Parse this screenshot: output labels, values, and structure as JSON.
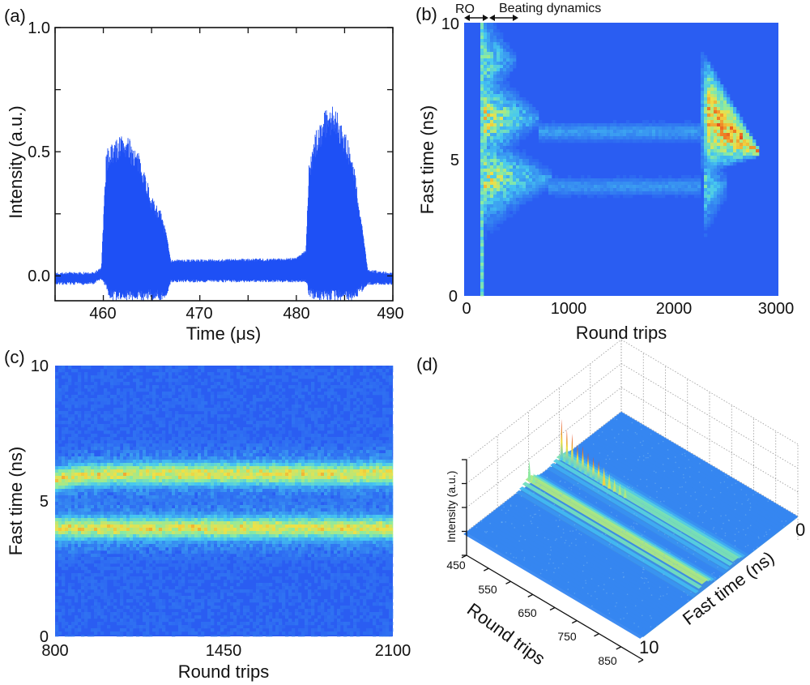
{
  "panels": {
    "a": "(a)",
    "b": "(b)",
    "c": "(c)",
    "d": "(d)"
  },
  "annotations": {
    "ro": "RO",
    "beating": "Beating dynamics"
  },
  "colors": {
    "trace": "#1e50f5",
    "heat_low": "#2a5df2",
    "heat_mid": "#46c8f0",
    "heat_yellow": "#f0e146",
    "heat_high": "#e12814"
  },
  "chart_data": [
    {
      "panel": "a",
      "type": "line",
      "xlabel": "Time (μs)",
      "ylabel": "Intensity (a.u.)",
      "xlim": [
        455,
        490
      ],
      "ylim": [
        -0.1,
        1.0
      ],
      "x_ticks": [
        "460",
        "470",
        "480",
        "490"
      ],
      "y_ticks": [
        "0.0",
        "0.5",
        "1.0"
      ],
      "grid": false,
      "envelope": [
        {
          "t": 455,
          "max": 0.01,
          "min": -0.03
        },
        {
          "t": 459,
          "max": 0.01,
          "min": -0.03
        },
        {
          "t": 459.8,
          "max": 0.03,
          "min": -0.01
        },
        {
          "t": 460.3,
          "max": 0.5,
          "min": -0.05
        },
        {
          "t": 460.6,
          "max": 0.53,
          "min": -0.1
        },
        {
          "t": 461.5,
          "max": 0.56,
          "min": -0.1
        },
        {
          "t": 462,
          "max": 0.58,
          "min": -0.1
        },
        {
          "t": 463,
          "max": 0.54,
          "min": -0.1
        },
        {
          "t": 464,
          "max": 0.47,
          "min": -0.1
        },
        {
          "t": 465,
          "max": 0.32,
          "min": -0.1
        },
        {
          "t": 466,
          "max": 0.26,
          "min": -0.1
        },
        {
          "t": 466.6,
          "max": 0.15,
          "min": -0.07
        },
        {
          "t": 467,
          "max": 0.06,
          "min": -0.02
        },
        {
          "t": 478,
          "max": 0.065,
          "min": -0.02
        },
        {
          "t": 480,
          "max": 0.07,
          "min": -0.02
        },
        {
          "t": 481,
          "max": 0.1,
          "min": -0.02
        },
        {
          "t": 481.3,
          "max": 0.45,
          "min": -0.08
        },
        {
          "t": 482,
          "max": 0.58,
          "min": -0.1
        },
        {
          "t": 483,
          "max": 0.68,
          "min": -0.1
        },
        {
          "t": 484,
          "max": 0.69,
          "min": -0.1
        },
        {
          "t": 485,
          "max": 0.6,
          "min": -0.1
        },
        {
          "t": 486,
          "max": 0.45,
          "min": -0.1
        },
        {
          "t": 486.8,
          "max": 0.2,
          "min": -0.06
        },
        {
          "t": 487.4,
          "max": 0.02,
          "min": -0.03
        },
        {
          "t": 490,
          "max": 0.01,
          "min": -0.03
        }
      ]
    },
    {
      "panel": "b",
      "type": "heatmap",
      "xlabel": "Round trips",
      "ylabel": "Fast time (ns)",
      "xlim": [
        0,
        3000
      ],
      "ylim": [
        0,
        10
      ],
      "x_ticks": [
        "0",
        "1000",
        "2000",
        "3000"
      ],
      "y_ticks": [
        "0",
        "5",
        "10"
      ],
      "features": [
        {
          "kind": "column",
          "center": 170,
          "half_width": 28,
          "level": 0.5,
          "period_ns": 0.38
        },
        {
          "kind": "lobe",
          "start": 200,
          "end": 700,
          "fast_time": 6.5,
          "level": 0.8
        },
        {
          "kind": "lobe",
          "start": 200,
          "end": 820,
          "fast_time": 4.3,
          "level": 0.75
        },
        {
          "kind": "lobe",
          "start": 200,
          "end": 480,
          "fast_time": 8.6,
          "level": 0.55
        },
        {
          "kind": "band",
          "start": 700,
          "end": 2250,
          "fast_time": 6.0,
          "level": 0.18
        },
        {
          "kind": "band",
          "start": 800,
          "end": 2250,
          "fast_time": 4.0,
          "level": 0.16
        },
        {
          "kind": "burst",
          "start": 2250,
          "end": 2800,
          "fast_time_start": 6.8,
          "fast_time_end": 5.3,
          "half_span_ns": 2.2,
          "level": 1.0
        },
        {
          "kind": "lobe",
          "start": 2280,
          "end": 2520,
          "fast_time": 4.0,
          "level": 0.5
        }
      ]
    },
    {
      "panel": "c",
      "type": "heatmap",
      "xlabel": "Round trips",
      "ylabel": "Fast time (ns)",
      "xlim": [
        800,
        2100
      ],
      "ylim": [
        0,
        10
      ],
      "x_ticks": [
        "800",
        "1450",
        "2100"
      ],
      "y_ticks": [
        "0",
        "5",
        "10"
      ],
      "bands": [
        {
          "fast_time": 6.0,
          "fast_time_at_start": 5.75,
          "level": 0.6,
          "width_ns": 0.4
        },
        {
          "fast_time": 4.0,
          "fast_time_at_start": 4.0,
          "level": 0.6,
          "width_ns": 0.4
        }
      ]
    },
    {
      "panel": "d",
      "type": "surface",
      "xlabel": "Round trips",
      "ylabel": "Fast time (ns)",
      "zlabel": "Intensity (a.u.)",
      "xlim": [
        450,
        850
      ],
      "ylim": [
        0,
        10
      ],
      "x_ticks": [
        "450",
        "550",
        "650",
        "750",
        "850"
      ],
      "y_ticks": [
        "0",
        "10"
      ],
      "bands": [
        {
          "fast_time": 6.0,
          "level": 0.55
        },
        {
          "fast_time": 4.0,
          "level": 0.4
        }
      ],
      "spikes": {
        "fast_time": 4.0,
        "start": 455,
        "end": 600,
        "step": 12,
        "peak": 1.0,
        "decay": 110
      }
    }
  ]
}
